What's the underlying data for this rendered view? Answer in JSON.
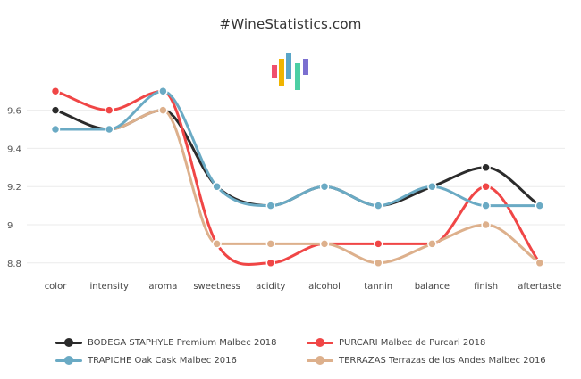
{
  "page": {
    "title": "#WineStatistics.com"
  },
  "logo_colors": [
    "#f0506e",
    "#f0b400",
    "#5aa6c8",
    "#4ccfa4",
    "#7b6fd0"
  ],
  "chart_data": {
    "type": "line",
    "title": "#WineStatistics.com",
    "xlabel": "",
    "ylabel": "",
    "categories": [
      "color",
      "intensity",
      "aroma",
      "sweetness",
      "acidity",
      "alcohol",
      "tannin",
      "balance",
      "finish",
      "aftertaste"
    ],
    "ylim": [
      8.7,
      9.8
    ],
    "yticks": [
      "8.8",
      "9",
      "9.2",
      "9.4",
      "9.6"
    ],
    "grid": true,
    "legend_position": "bottom",
    "series": [
      {
        "name": "BODEGA STAPHYLE Premium Malbec 2018",
        "color": "#2b2b2b",
        "values": [
          9.6,
          9.5,
          9.6,
          9.2,
          9.1,
          9.2,
          9.1,
          9.2,
          9.3,
          9.1
        ]
      },
      {
        "name": "PURCARI Malbec de Purcari 2018",
        "color": "#f04646",
        "values": [
          9.7,
          9.6,
          9.7,
          8.9,
          8.8,
          8.9,
          8.9,
          8.9,
          9.2,
          8.8
        ]
      },
      {
        "name": "TRAPICHE Oak Cask Malbec 2016",
        "color": "#6aaac4",
        "values": [
          9.5,
          9.5,
          9.7,
          9.2,
          9.1,
          9.2,
          9.1,
          9.2,
          9.1,
          9.1
        ]
      },
      {
        "name": "TERRAZAS Terrazas de los Andes Malbec 2016",
        "color": "#ddb08c",
        "values": [
          9.5,
          9.5,
          9.6,
          8.9,
          8.9,
          8.9,
          8.8,
          8.9,
          9.0,
          8.8
        ]
      }
    ]
  }
}
